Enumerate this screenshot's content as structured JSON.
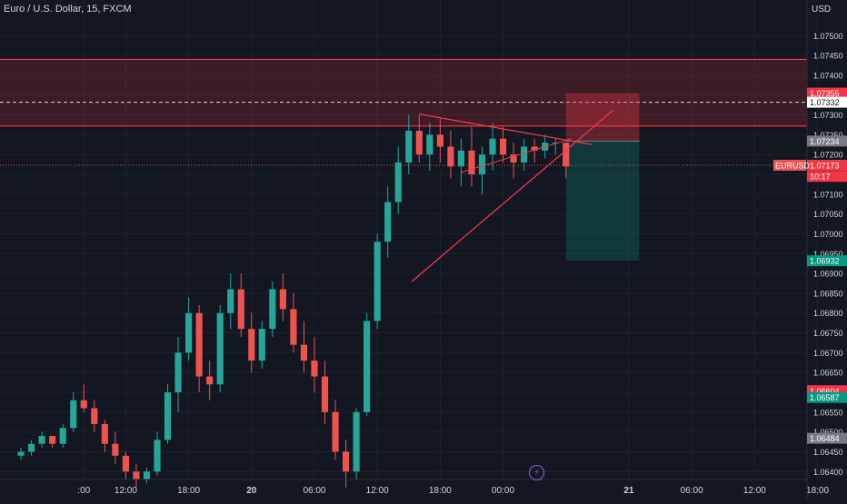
{
  "header": {
    "title": "Euro / U.S. Dollar, 15, FXCM",
    "currency": "USD"
  },
  "colors": {
    "background": "#131722",
    "up": "#26a69a",
    "down": "#ef5350",
    "text": "#d1d4dc",
    "zone": "#f23645",
    "trendline": "#f23645",
    "tp_zone": "#089981",
    "sl_zone": "#f23645",
    "event": "#9b59f6"
  },
  "event_icon": "lightning-icon",
  "chart_data": {
    "type": "candlestick",
    "y_axis_ticks": [
      "1.07500",
      "1.07450",
      "1.07400",
      "1.07350",
      "1.07300",
      "1.07250",
      "1.07200",
      "1.07150",
      "1.07100",
      "1.07050",
      "1.07000",
      "1.06950",
      "1.06900",
      "1.06850",
      "1.06800",
      "1.06750",
      "1.06700",
      "1.06650",
      "1.06600",
      "1.06550",
      "1.06500",
      "1.06450",
      "1.06400"
    ],
    "x_axis_ticks": [
      {
        "label": ":00",
        "t": -4
      },
      {
        "label": "12:00",
        "t": 0
      },
      {
        "label": "18:00",
        "t": 6
      },
      {
        "label": "20",
        "t": 12
      },
      {
        "label": "06:00",
        "t": 18
      },
      {
        "label": "12:00",
        "t": 24
      },
      {
        "label": "18:00",
        "t": 30
      },
      {
        "label": "00:00",
        "t": 36
      },
      {
        "label": "21",
        "t": 48
      },
      {
        "label": "06:00",
        "t": 54
      },
      {
        "label": "12:00",
        "t": 60
      },
      {
        "label": "18:00",
        "t": 66
      }
    ],
    "ylim": [
      1.0638,
      1.0759
    ],
    "xlim": [
      -12,
      65
    ],
    "candles": [
      [
        -10,
        1.0644,
        1.0646,
        1.0643,
        1.0645
      ],
      [
        -9,
        1.0645,
        1.0648,
        1.0644,
        1.0647
      ],
      [
        -8,
        1.0647,
        1.065,
        1.0646,
        1.0649
      ],
      [
        -7,
        1.0649,
        1.0649,
        1.0646,
        1.0647
      ],
      [
        -6,
        1.0647,
        1.0652,
        1.0646,
        1.0651
      ],
      [
        -5,
        1.0651,
        1.066,
        1.065,
        1.0658
      ],
      [
        -4,
        1.0658,
        1.0662,
        1.0655,
        1.0656
      ],
      [
        -3,
        1.0656,
        1.0658,
        1.065,
        1.0652
      ],
      [
        -2,
        1.0652,
        1.0653,
        1.0645,
        1.0647
      ],
      [
        -1,
        1.0647,
        1.065,
        1.0642,
        1.0644
      ],
      [
        0,
        1.0644,
        1.0645,
        1.0638,
        1.064
      ],
      [
        1,
        1.064,
        1.0642,
        1.0636,
        1.0638
      ],
      [
        2,
        1.0638,
        1.0641,
        1.0637,
        1.064
      ],
      [
        3,
        1.064,
        1.065,
        1.0639,
        1.0648
      ],
      [
        4,
        1.0648,
        1.0662,
        1.0647,
        1.066
      ],
      [
        5,
        1.066,
        1.0674,
        1.0655,
        1.067
      ],
      [
        6,
        1.067,
        1.0684,
        1.0668,
        1.068
      ],
      [
        7,
        1.068,
        1.0682,
        1.066,
        1.0664
      ],
      [
        8,
        1.0664,
        1.0668,
        1.0658,
        1.0662
      ],
      [
        9,
        1.0662,
        1.0682,
        1.066,
        1.068
      ],
      [
        10,
        1.068,
        1.069,
        1.0676,
        1.0686
      ],
      [
        11,
        1.0686,
        1.069,
        1.0674,
        1.0676
      ],
      [
        12,
        1.0676,
        1.068,
        1.0665,
        1.0668
      ],
      [
        13,
        1.0668,
        1.0678,
        1.0666,
        1.0676
      ],
      [
        14,
        1.0676,
        1.0688,
        1.0674,
        1.0686
      ],
      [
        15,
        1.0686,
        1.069,
        1.0678,
        1.0681
      ],
      [
        16,
        1.0681,
        1.0685,
        1.067,
        1.0672
      ],
      [
        17,
        1.0672,
        1.0678,
        1.0665,
        1.0668
      ],
      [
        18,
        1.0668,
        1.0674,
        1.066,
        1.0664
      ],
      [
        19,
        1.0664,
        1.0668,
        1.0652,
        1.0655
      ],
      [
        20,
        1.0655,
        1.0658,
        1.0643,
        1.0645
      ],
      [
        21,
        1.0645,
        1.0648,
        1.0636,
        1.064
      ],
      [
        22,
        1.064,
        1.0656,
        1.0638,
        1.0655
      ],
      [
        23,
        1.0655,
        1.068,
        1.0654,
        1.0678
      ],
      [
        24,
        1.0678,
        1.07,
        1.0676,
        1.0698
      ],
      [
        25,
        1.0698,
        1.0712,
        1.0694,
        1.0708
      ],
      [
        26,
        1.0708,
        1.0722,
        1.0705,
        1.0718
      ],
      [
        27,
        1.0718,
        1.073,
        1.0715,
        1.0726
      ],
      [
        28,
        1.0726,
        1.073,
        1.0718,
        1.072
      ],
      [
        29,
        1.072,
        1.0728,
        1.0716,
        1.0725
      ],
      [
        30,
        1.0725,
        1.0729,
        1.0718,
        1.0722
      ],
      [
        31,
        1.0722,
        1.0726,
        1.0714,
        1.0717
      ],
      [
        32,
        1.0717,
        1.0724,
        1.0712,
        1.0721
      ],
      [
        33,
        1.0721,
        1.0727,
        1.0712,
        1.0715
      ],
      [
        34,
        1.0715,
        1.0722,
        1.071,
        1.072
      ],
      [
        35,
        1.072,
        1.0728,
        1.0716,
        1.0724
      ],
      [
        36,
        1.0724,
        1.0727,
        1.0718,
        1.072
      ],
      [
        37,
        1.072,
        1.0723,
        1.0714,
        1.0718
      ],
      [
        38,
        1.0718,
        1.0724,
        1.0716,
        1.0722
      ],
      [
        39,
        1.0722,
        1.0724,
        1.0718,
        1.0721
      ],
      [
        40,
        1.0721,
        1.0725,
        1.0719,
        1.0723
      ],
      [
        41,
        1.0723,
        1.0724,
        1.072,
        1.0723
      ],
      [
        42,
        1.0723,
        1.0723,
        1.0714,
        1.0717
      ]
    ],
    "resistance_zone": {
      "top": 1.0744,
      "bottom": 1.07272
    },
    "dashed_level": 1.07332,
    "dotted_level": 1.07173,
    "position": {
      "start": 42,
      "end": 49,
      "entry": 1.07234,
      "stop": 1.07355,
      "target": 1.06932
    },
    "price_labels": [
      {
        "text": "1.07355",
        "price": 1.07355,
        "bg": "#f23645",
        "fg": "#ffffff"
      },
      {
        "text": "1.07332",
        "price": 1.07332,
        "bg": "#ffffff",
        "fg": "#131722"
      },
      {
        "text": "1.07234",
        "price": 1.07234,
        "bg": "#787b86",
        "fg": "#ffffff"
      },
      {
        "text": "1.07173",
        "price": 1.07173,
        "bg": "#f23645",
        "fg": "#ffffff"
      },
      {
        "text": "10:17",
        "price": 1.07145,
        "bg": "#f23645",
        "fg": "#ffffff"
      },
      {
        "text": "1.06932",
        "price": 1.06932,
        "bg": "#089981",
        "fg": "#ffffff"
      },
      {
        "text": "1.06604",
        "price": 1.06604,
        "bg": "#f23645",
        "fg": "#ffffff"
      },
      {
        "text": "1.06587",
        "price": 1.06587,
        "bg": "#089981",
        "fg": "#ffffff"
      },
      {
        "text": "1.06484",
        "price": 1.06484,
        "bg": "#787b86",
        "fg": "#ffffff"
      }
    ],
    "symbol_tag": {
      "text": "EURUSD",
      "price": 1.07173
    }
  }
}
